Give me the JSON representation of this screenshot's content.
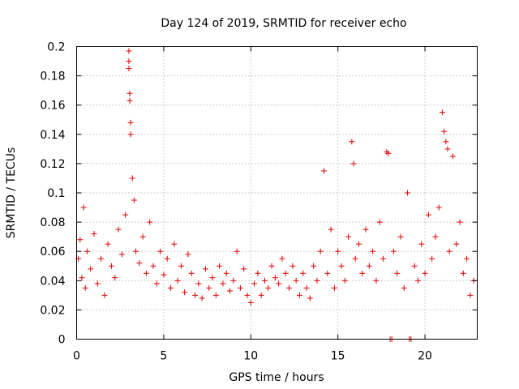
{
  "chart_data": {
    "type": "scatter",
    "title": "Day 124 of 2019, SRMTID for receiver echo",
    "xlabel": "GPS time / hours",
    "ylabel": "SRMTID / TECUs",
    "xlim": [
      0,
      23
    ],
    "ylim": [
      0,
      0.2
    ],
    "x_ticks": [
      0,
      5,
      10,
      15,
      20
    ],
    "x_tick_labels": [
      "0",
      "5",
      "10",
      "15",
      "20"
    ],
    "y_ticks": [
      0,
      0.02,
      0.04,
      0.06,
      0.08,
      0.1,
      0.12,
      0.14,
      0.16,
      0.18,
      0.2
    ],
    "y_tick_labels": [
      "0",
      "0.02",
      "0.04",
      "0.06",
      "0.08",
      "0.1",
      "0.12",
      "0.14",
      "0.16",
      "0.18",
      "0.2"
    ],
    "grid": true,
    "marker": "+",
    "color": "#e00000",
    "series": [
      {
        "name": "SRMTID",
        "x": [
          0.1,
          0.2,
          0.3,
          0.4,
          0.5,
          0.6,
          0.8,
          1.0,
          1.2,
          1.4,
          1.6,
          1.8,
          2.0,
          2.2,
          2.4,
          2.6,
          2.8,
          3.0,
          3.0,
          3.0,
          3.05,
          3.05,
          3.1,
          3.1,
          3.2,
          3.3,
          3.4,
          3.6,
          3.8,
          4.0,
          4.2,
          4.4,
          4.6,
          4.8,
          5.0,
          5.2,
          5.4,
          5.6,
          5.8,
          6.0,
          6.2,
          6.4,
          6.6,
          6.8,
          7.0,
          7.2,
          7.4,
          7.6,
          7.8,
          8.0,
          8.2,
          8.4,
          8.6,
          8.8,
          9.0,
          9.2,
          9.4,
          9.6,
          9.8,
          10.0,
          10.2,
          10.4,
          10.6,
          10.8,
          11.0,
          11.2,
          11.4,
          11.6,
          11.8,
          12.0,
          12.2,
          12.4,
          12.6,
          12.8,
          13.0,
          13.2,
          13.4,
          13.6,
          13.8,
          14.0,
          14.2,
          14.4,
          14.6,
          14.8,
          15.0,
          15.2,
          15.4,
          15.6,
          15.8,
          15.9,
          16.0,
          16.2,
          16.4,
          16.6,
          16.8,
          17.0,
          17.2,
          17.4,
          17.6,
          17.8,
          17.9,
          18.0,
          18.1,
          18.2,
          18.4,
          18.6,
          18.8,
          19.0,
          19.1,
          19.2,
          19.4,
          19.6,
          19.8,
          20.0,
          20.2,
          20.4,
          20.6,
          20.8,
          21.0,
          21.1,
          21.2,
          21.3,
          21.4,
          21.6,
          21.8,
          22.0,
          22.2,
          22.4,
          22.6,
          22.8
        ],
        "y": [
          0.055,
          0.068,
          0.042,
          0.09,
          0.035,
          0.06,
          0.048,
          0.072,
          0.038,
          0.055,
          0.03,
          0.065,
          0.05,
          0.042,
          0.075,
          0.058,
          0.085,
          0.197,
          0.19,
          0.185,
          0.168,
          0.163,
          0.148,
          0.14,
          0.11,
          0.095,
          0.06,
          0.052,
          0.07,
          0.045,
          0.08,
          0.05,
          0.038,
          0.06,
          0.044,
          0.055,
          0.035,
          0.065,
          0.04,
          0.05,
          0.032,
          0.058,
          0.045,
          0.03,
          0.038,
          0.028,
          0.048,
          0.035,
          0.042,
          0.03,
          0.05,
          0.038,
          0.045,
          0.033,
          0.04,
          0.06,
          0.035,
          0.048,
          0.03,
          0.025,
          0.038,
          0.045,
          0.03,
          0.04,
          0.035,
          0.05,
          0.042,
          0.038,
          0.055,
          0.045,
          0.035,
          0.05,
          0.04,
          0.03,
          0.045,
          0.035,
          0.028,
          0.05,
          0.04,
          0.06,
          0.115,
          0.045,
          0.075,
          0.035,
          0.06,
          0.05,
          0.04,
          0.07,
          0.135,
          0.12,
          0.055,
          0.065,
          0.045,
          0.075,
          0.05,
          0.06,
          0.04,
          0.08,
          0.055,
          0.128,
          0.127,
          0.0,
          0.0,
          0.06,
          0.045,
          0.07,
          0.035,
          0.1,
          0.0,
          0.0,
          0.05,
          0.04,
          0.065,
          0.045,
          0.085,
          0.055,
          0.07,
          0.09,
          0.155,
          0.142,
          0.135,
          0.13,
          0.06,
          0.125,
          0.065,
          0.08,
          0.045,
          0.055,
          0.03,
          0.04
        ]
      }
    ]
  }
}
